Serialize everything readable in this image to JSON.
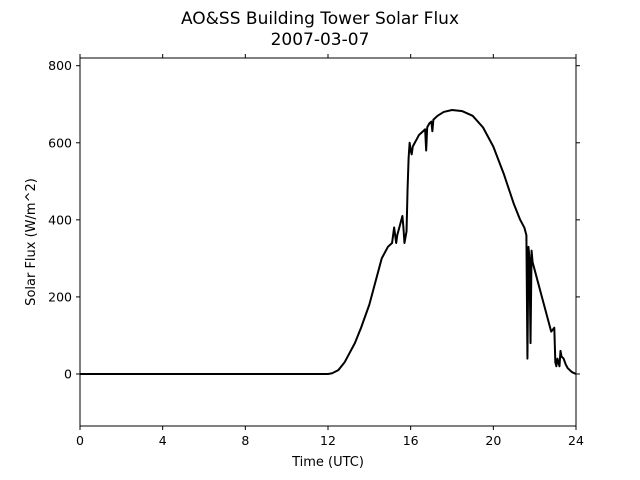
{
  "chart_data": {
    "type": "line",
    "title": "AO&SS Building Tower Solar Flux",
    "subtitle": "2007-03-07",
    "xlabel": "Time (UTC)",
    "ylabel": "Solar Flux (W/m^2)",
    "xlim": [
      0,
      24
    ],
    "ylim": [
      -135,
      820
    ],
    "xticks": [
      0,
      4,
      8,
      12,
      16,
      20,
      24
    ],
    "yticks": [
      0,
      200,
      400,
      600,
      800
    ],
    "grid": false,
    "legend": "none",
    "line_color": "#000000",
    "series": [
      {
        "x": [
          0,
          12.0,
          12.2,
          12.5,
          12.8,
          13.0,
          13.3,
          13.6,
          14.0,
          14.3,
          14.6,
          14.9,
          15.1,
          15.2,
          15.3,
          15.35,
          15.4,
          15.5,
          15.6,
          15.65,
          15.7,
          15.8,
          15.85,
          15.9,
          15.95,
          16.0,
          16.05,
          16.1,
          16.2,
          16.3,
          16.4,
          16.5,
          16.6,
          16.7,
          16.75,
          16.8,
          16.9,
          17.0,
          17.05,
          17.1,
          17.3,
          17.6,
          18.0,
          18.5,
          19.0,
          19.5,
          20.0,
          20.5,
          21.0,
          21.3,
          21.5,
          21.6,
          21.65,
          21.7,
          21.75,
          21.8,
          21.85,
          21.9,
          22.0,
          22.2,
          22.5,
          22.8,
          22.95,
          23.0,
          23.05,
          23.1,
          23.2,
          23.25,
          23.3,
          23.4,
          23.5,
          23.6,
          23.8,
          24.0
        ],
        "y": [
          0,
          0,
          2,
          10,
          30,
          50,
          80,
          120,
          180,
          240,
          300,
          330,
          340,
          380,
          340,
          360,
          370,
          390,
          410,
          380,
          340,
          370,
          480,
          560,
          600,
          580,
          570,
          590,
          600,
          610,
          620,
          625,
          630,
          635,
          580,
          640,
          650,
          655,
          630,
          660,
          670,
          680,
          685,
          682,
          670,
          640,
          590,
          520,
          440,
          400,
          380,
          360,
          40,
          330,
          300,
          80,
          320,
          290,
          270,
          230,
          170,
          110,
          120,
          30,
          20,
          40,
          20,
          60,
          45,
          40,
          25,
          15,
          5,
          0
        ]
      }
    ]
  }
}
